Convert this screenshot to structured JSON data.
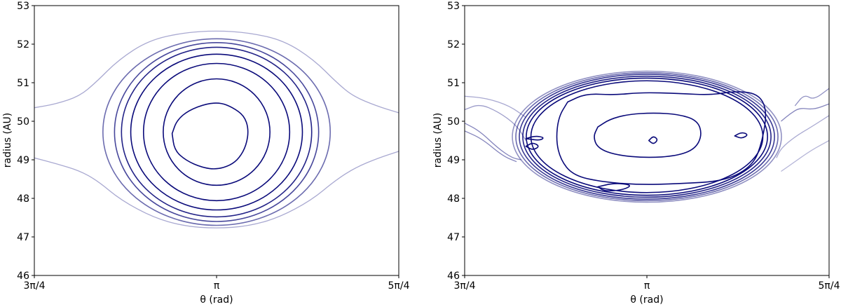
{
  "chart_data": [
    {
      "type": "contour",
      "x_ticks": [
        "3π/4",
        "π",
        "5π/4"
      ],
      "x_tick_values": [
        2.356,
        3.1416,
        3.927
      ],
      "xlim": [
        2.356,
        3.927
      ],
      "xlabel": "θ (rad)",
      "y_ticks": [
        "46",
        "47",
        "48",
        "49",
        "50",
        "51",
        "52",
        "53"
      ],
      "y_tick_values": [
        46,
        47,
        48,
        49,
        50,
        51,
        52,
        53
      ],
      "ylim": [
        46,
        53
      ],
      "ylabel": "radius (AU)",
      "grid": false,
      "line_color": "#0a0a7a",
      "contours": [
        {
          "level": 1,
          "closed": true,
          "alpha": 1.0,
          "points": [
            [
              2.95,
              49.68
            ],
            [
              2.97,
              50.02
            ],
            [
              3.02,
              50.28
            ],
            [
              3.1,
              50.46
            ],
            [
              3.16,
              50.48
            ],
            [
              3.21,
              50.36
            ],
            [
              3.26,
              50.15
            ],
            [
              3.28,
              49.8
            ],
            [
              3.27,
              49.38
            ],
            [
              3.24,
              49.05
            ],
            [
              3.2,
              48.85
            ],
            [
              3.14,
              48.75
            ],
            [
              3.08,
              48.8
            ],
            [
              3.01,
              48.98
            ],
            [
              2.96,
              49.25
            ]
          ]
        },
        {
          "level": 2,
          "closed": true,
          "alpha": 1.0,
          "ellipse": {
            "cx": 3.1416,
            "cy": 49.72,
            "rx": 0.23,
            "ry": 1.38
          }
        },
        {
          "level": 3,
          "closed": true,
          "alpha": 1.0,
          "ellipse": {
            "cx": 3.1416,
            "cy": 49.72,
            "rx": 0.315,
            "ry": 1.78
          }
        },
        {
          "level": 4,
          "closed": true,
          "alpha": 1.0,
          "ellipse": {
            "cx": 3.1416,
            "cy": 49.72,
            "rx": 0.37,
            "ry": 2.02
          }
        },
        {
          "level": 5,
          "closed": true,
          "alpha": 0.9,
          "ellipse": {
            "cx": 3.1416,
            "cy": 49.72,
            "rx": 0.41,
            "ry": 2.2
          }
        },
        {
          "level": 6,
          "closed": true,
          "alpha": 0.75,
          "ellipse": {
            "cx": 3.1416,
            "cy": 49.72,
            "rx": 0.44,
            "ry": 2.32
          }
        },
        {
          "level": 7,
          "closed": true,
          "alpha": 0.6,
          "ellipse": {
            "cx": 3.1416,
            "cy": 49.72,
            "rx": 0.49,
            "ry": 2.42
          }
        },
        {
          "level": 8,
          "closed": false,
          "alpha": 0.35,
          "points": [
            [
              2.356,
              50.35
            ],
            [
              2.45,
              50.45
            ],
            [
              2.55,
              50.65
            ],
            [
              2.62,
              51.0
            ],
            [
              2.72,
              51.6
            ],
            [
              2.85,
              52.1
            ],
            [
              3.0,
              52.3
            ],
            [
              3.14,
              52.35
            ],
            [
              3.28,
              52.3
            ],
            [
              3.43,
              52.1
            ],
            [
              3.56,
              51.6
            ],
            [
              3.66,
              51.0
            ],
            [
              3.73,
              50.65
            ],
            [
              3.83,
              50.4
            ],
            [
              3.927,
              50.22
            ]
          ]
        },
        {
          "level": 8,
          "closed": false,
          "alpha": 0.35,
          "points": [
            [
              2.356,
              49.05
            ],
            [
              2.45,
              48.9
            ],
            [
              2.55,
              48.72
            ],
            [
              2.63,
              48.45
            ],
            [
              2.73,
              47.95
            ],
            [
              2.87,
              47.5
            ],
            [
              3.0,
              47.28
            ],
            [
              3.14,
              47.22
            ],
            [
              3.28,
              47.28
            ],
            [
              3.41,
              47.5
            ],
            [
              3.55,
              47.95
            ],
            [
              3.65,
              48.45
            ],
            [
              3.74,
              48.8
            ],
            [
              3.84,
              49.05
            ],
            [
              3.927,
              49.22
            ]
          ]
        }
      ]
    },
    {
      "type": "contour",
      "x_ticks": [
        "3π/4",
        "π",
        "5π/4"
      ],
      "x_tick_values": [
        2.356,
        3.1416,
        3.927
      ],
      "xlim": [
        2.356,
        3.927
      ],
      "xlabel": "θ (rad)",
      "y_ticks": [
        "46",
        "47",
        "48",
        "49",
        "50",
        "51",
        "52",
        "53"
      ],
      "y_tick_values": [
        46,
        47,
        48,
        49,
        50,
        51,
        52,
        53
      ],
      "ylim": [
        46,
        53
      ],
      "ylabel": "radius (AU)",
      "grid": false,
      "line_color": "#0a0a7a",
      "contours": [
        {
          "level": 1,
          "closed": true,
          "alpha": 1.0,
          "points": [
            [
              2.93,
              49.85
            ],
            [
              2.98,
              50.05
            ],
            [
              3.06,
              50.18
            ],
            [
              3.17,
              50.22
            ],
            [
              3.28,
              50.18
            ],
            [
              3.36,
              50.02
            ],
            [
              3.38,
              49.65
            ],
            [
              3.35,
              49.28
            ],
            [
              3.27,
              49.1
            ],
            [
              3.14,
              49.05
            ],
            [
              3.01,
              49.12
            ],
            [
              2.93,
              49.3
            ],
            [
              2.91,
              49.6
            ]
          ]
        },
        {
          "level": 1,
          "closed": true,
          "alpha": 1.0,
          "points": [
            [
              2.8,
              50.5
            ],
            [
              2.88,
              50.72
            ],
            [
              3.0,
              50.68
            ],
            [
              3.12,
              50.75
            ],
            [
              3.28,
              50.72
            ],
            [
              3.42,
              50.68
            ],
            [
              3.52,
              50.78
            ],
            [
              3.62,
              50.72
            ],
            [
              3.66,
              50.3
            ],
            [
              3.64,
              49.5
            ],
            [
              3.6,
              48.85
            ],
            [
              3.48,
              48.45
            ],
            [
              3.28,
              48.38
            ],
            [
              3.1,
              48.35
            ],
            [
              2.92,
              48.45
            ],
            [
              2.82,
              48.62
            ],
            [
              2.77,
              49.0
            ],
            [
              2.75,
              49.5
            ],
            [
              2.76,
              50.1
            ]
          ]
        },
        {
          "level": 1,
          "closed": true,
          "alpha": 1.0,
          "points": [
            [
              2.93,
              48.3
            ],
            [
              3.0,
              48.4
            ],
            [
              3.08,
              48.35
            ],
            [
              3.04,
              48.22
            ],
            [
              2.96,
              48.18
            ]
          ]
        },
        {
          "level": 1,
          "closed": true,
          "alpha": 1.0,
          "points": [
            [
              2.62,
              49.35
            ],
            [
              2.65,
              49.45
            ],
            [
              2.68,
              49.35
            ],
            [
              2.65,
              49.25
            ]
          ]
        },
        {
          "level": 1,
          "closed": true,
          "alpha": 1.0,
          "points": [
            [
              2.62,
              49.55
            ],
            [
              2.66,
              49.62
            ],
            [
              2.7,
              49.58
            ],
            [
              2.68,
              49.5
            ]
          ]
        },
        {
          "level": 1,
          "closed": true,
          "alpha": 1.0,
          "points": [
            [
              3.15,
              49.5
            ],
            [
              3.17,
              49.62
            ],
            [
              3.19,
              49.52
            ],
            [
              3.17,
              49.4
            ]
          ]
        },
        {
          "level": 1,
          "closed": true,
          "alpha": 1.0,
          "points": [
            [
              3.52,
              49.62
            ],
            [
              3.55,
              49.72
            ],
            [
              3.58,
              49.65
            ],
            [
              3.55,
              49.55
            ]
          ]
        },
        {
          "level": 2,
          "closed": true,
          "alpha": 1.0,
          "ellipse": {
            "cx": 3.1416,
            "cy": 49.6,
            "rx": 0.5,
            "ry": 1.45
          }
        },
        {
          "level": 3,
          "closed": true,
          "alpha": 1.0,
          "ellipse": {
            "cx": 3.1416,
            "cy": 49.6,
            "rx": 0.52,
            "ry": 1.52
          }
        },
        {
          "level": 4,
          "closed": true,
          "alpha": 0.9,
          "ellipse": {
            "cx": 3.1416,
            "cy": 49.6,
            "rx": 0.535,
            "ry": 1.57
          }
        },
        {
          "level": 5,
          "closed": true,
          "alpha": 0.8,
          "ellipse": {
            "cx": 3.1416,
            "cy": 49.6,
            "rx": 0.55,
            "ry": 1.62
          }
        },
        {
          "level": 6,
          "closed": true,
          "alpha": 0.6,
          "ellipse": {
            "cx": 3.1416,
            "cy": 49.6,
            "rx": 0.565,
            "ry": 1.66
          }
        },
        {
          "level": 7,
          "closed": true,
          "alpha": 0.45,
          "ellipse": {
            "cx": 3.1416,
            "cy": 49.6,
            "rx": 0.58,
            "ry": 1.7
          }
        },
        {
          "level": 8,
          "closed": false,
          "alpha": 0.5,
          "points": [
            [
              2.356,
              49.95
            ],
            [
              2.42,
              49.75
            ],
            [
              2.5,
              49.3
            ],
            [
              2.56,
              49.05
            ],
            [
              2.6,
              49.0
            ]
          ]
        },
        {
          "level": 8,
          "closed": false,
          "alpha": 0.5,
          "points": [
            [
              2.356,
              49.75
            ],
            [
              2.43,
              49.55
            ],
            [
              2.52,
              49.1
            ],
            [
              2.58,
              48.95
            ]
          ]
        },
        {
          "level": 8,
          "closed": false,
          "alpha": 0.4,
          "points": [
            [
              2.356,
              50.3
            ],
            [
              2.42,
              50.45
            ],
            [
              2.5,
              50.25
            ],
            [
              2.58,
              49.9
            ],
            [
              2.62,
              49.5
            ]
          ]
        },
        {
          "level": 8,
          "closed": false,
          "alpha": 0.35,
          "points": [
            [
              2.356,
              50.65
            ],
            [
              2.45,
              50.6
            ],
            [
              2.55,
              50.4
            ],
            [
              2.62,
              50.1
            ]
          ]
        },
        {
          "level": 8,
          "closed": false,
          "alpha": 0.5,
          "points": [
            [
              3.927,
              50.45
            ],
            [
              3.86,
              50.3
            ],
            [
              3.8,
              50.35
            ],
            [
              3.76,
              50.2
            ],
            [
              3.72,
              50.0
            ]
          ]
        },
        {
          "level": 8,
          "closed": false,
          "alpha": 0.45,
          "points": [
            [
              3.927,
              50.85
            ],
            [
              3.86,
              50.55
            ],
            [
              3.82,
              50.7
            ],
            [
              3.78,
              50.4
            ]
          ]
        },
        {
          "level": 8,
          "closed": false,
          "alpha": 0.35,
          "points": [
            [
              3.927,
              50.15
            ],
            [
              3.85,
              49.85
            ],
            [
              3.78,
              49.6
            ],
            [
              3.72,
              49.3
            ],
            [
              3.7,
              49.05
            ]
          ]
        },
        {
          "level": 8,
          "closed": false,
          "alpha": 0.3,
          "points": [
            [
              3.927,
              49.5
            ],
            [
              3.85,
              49.25
            ],
            [
              3.78,
              48.95
            ],
            [
              3.72,
              48.7
            ]
          ]
        }
      ]
    }
  ]
}
